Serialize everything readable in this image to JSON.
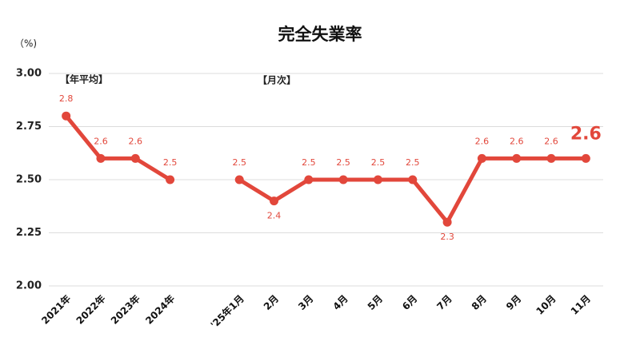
{
  "chart_data": {
    "type": "line",
    "title": "完全失業率",
    "y_label": "（%)",
    "annotations": [
      "【年平均】",
      "【月次】"
    ],
    "categories": [
      "2021年",
      "2022年",
      "2023年",
      "2024年",
      null,
      "'25年1月",
      "2月",
      "3月",
      "4月",
      "5月",
      "6月",
      "7月",
      "8月",
      "9月",
      "10月",
      "11月"
    ],
    "values": [
      2.8,
      2.6,
      2.6,
      2.5,
      null,
      2.5,
      2.4,
      2.5,
      2.5,
      2.5,
      2.5,
      2.3,
      2.6,
      2.6,
      2.6,
      2.6
    ],
    "color": "#e2473b",
    "ylim": [
      2,
      3
    ],
    "yticks": [
      {
        "value": 2,
        "label": "2.00"
      },
      {
        "value": 2.25,
        "label": "2.25"
      },
      {
        "value": 2.5,
        "label": "2.50"
      },
      {
        "value": 2.75,
        "label": "2.75"
      },
      {
        "value": 3,
        "label": "3.00"
      }
    ],
    "grid": true
  }
}
